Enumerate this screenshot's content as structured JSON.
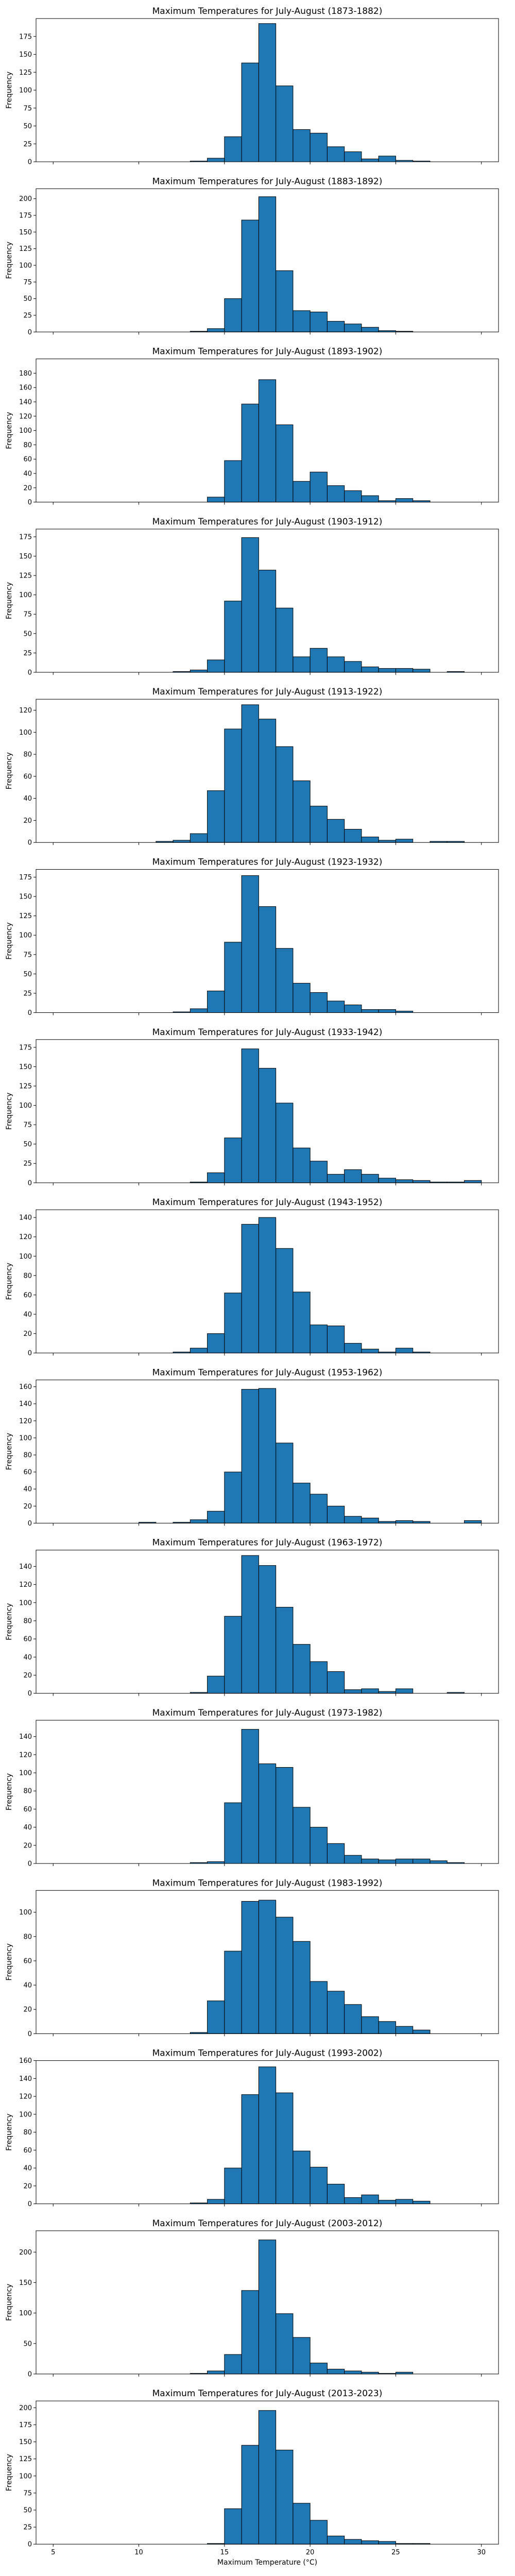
{
  "chart_data": {
    "type": "bar",
    "xlabel": "Maximum Temperature (°C)",
    "ylabel": "Frequency",
    "xlim": [
      4,
      31
    ],
    "x_ticks": [
      5,
      10,
      15,
      20,
      25,
      30
    ],
    "bin_width": 1,
    "bar_color": "#1f77b4",
    "edge_color": "#000000",
    "grid": false,
    "panels": [
      {
        "title": "Maximum Temperatures for July-August (1873-1882)",
        "ylim": [
          0,
          200
        ],
        "y_ticks": [
          0,
          25,
          50,
          75,
          100,
          125,
          150,
          175
        ],
        "bin_starts": [
          13,
          14,
          15,
          16,
          17,
          18,
          19,
          20,
          21,
          22,
          23,
          24,
          25,
          26
        ],
        "values": [
          1,
          5,
          35,
          138,
          193,
          106,
          45,
          40,
          21,
          14,
          4,
          8,
          2,
          1
        ]
      },
      {
        "title": "Maximum Temperatures for July-August (1883-1892)",
        "ylim": [
          0,
          215
        ],
        "y_ticks": [
          0,
          25,
          50,
          75,
          100,
          125,
          150,
          175,
          200
        ],
        "bin_starts": [
          13,
          14,
          15,
          16,
          17,
          18,
          19,
          20,
          21,
          22,
          23,
          24,
          25
        ],
        "values": [
          1,
          5,
          50,
          168,
          203,
          92,
          32,
          30,
          16,
          12,
          7,
          2,
          1
        ]
      },
      {
        "title": "Maximum Temperatures for July-August (1893-1902)",
        "ylim": [
          0,
          200
        ],
        "y_ticks": [
          0,
          20,
          40,
          60,
          80,
          100,
          120,
          140,
          160,
          180
        ],
        "bin_starts": [
          14,
          15,
          16,
          17,
          18,
          19,
          20,
          21,
          22,
          23,
          24,
          25,
          26
        ],
        "values": [
          7,
          58,
          137,
          171,
          108,
          29,
          42,
          23,
          16,
          9,
          2,
          5,
          2
        ]
      },
      {
        "title": "Maximum Temperatures for July-August (1903-1912)",
        "ylim": [
          0,
          185
        ],
        "y_ticks": [
          0,
          25,
          50,
          75,
          100,
          125,
          150,
          175
        ],
        "bin_starts": [
          12,
          13,
          14,
          15,
          16,
          17,
          18,
          19,
          20,
          21,
          22,
          23,
          24,
          25,
          26,
          27,
          28
        ],
        "values": [
          1,
          3,
          16,
          92,
          174,
          132,
          83,
          20,
          31,
          20,
          14,
          7,
          5,
          5,
          4,
          0,
          1
        ]
      },
      {
        "title": "Maximum Temperatures for July-August (1913-1922)",
        "ylim": [
          0,
          130
        ],
        "y_ticks": [
          0,
          20,
          40,
          60,
          80,
          100,
          120
        ],
        "bin_starts": [
          11,
          12,
          13,
          14,
          15,
          16,
          17,
          18,
          19,
          20,
          21,
          22,
          23,
          24,
          25,
          26,
          27,
          28
        ],
        "values": [
          1,
          2,
          8,
          47,
          103,
          125,
          112,
          87,
          56,
          33,
          21,
          12,
          5,
          2,
          3,
          0,
          1,
          1
        ]
      },
      {
        "title": "Maximum Temperatures for July-August (1923-1932)",
        "ylim": [
          0,
          185
        ],
        "y_ticks": [
          0,
          25,
          50,
          75,
          100,
          125,
          150,
          175
        ],
        "bin_starts": [
          12,
          13,
          14,
          15,
          16,
          17,
          18,
          19,
          20,
          21,
          22,
          23,
          24,
          25
        ],
        "values": [
          1,
          5,
          28,
          91,
          177,
          137,
          83,
          38,
          26,
          15,
          10,
          4,
          4,
          2
        ]
      },
      {
        "title": "Maximum Temperatures for July-August (1933-1942)",
        "ylim": [
          0,
          185
        ],
        "y_ticks": [
          0,
          25,
          50,
          75,
          100,
          125,
          150,
          175
        ],
        "bin_starts": [
          13,
          14,
          15,
          16,
          17,
          18,
          19,
          20,
          21,
          22,
          23,
          24,
          25,
          26,
          27,
          28,
          29
        ],
        "values": [
          1,
          13,
          58,
          173,
          148,
          103,
          45,
          28,
          11,
          17,
          11,
          6,
          4,
          3,
          1,
          1,
          3
        ]
      },
      {
        "title": "Maximum Temperatures for July-August (1943-1952)",
        "ylim": [
          0,
          148
        ],
        "y_ticks": [
          0,
          20,
          40,
          60,
          80,
          100,
          120,
          140
        ],
        "bin_starts": [
          12,
          13,
          14,
          15,
          16,
          17,
          18,
          19,
          20,
          21,
          22,
          23,
          24,
          25,
          26
        ],
        "values": [
          1,
          5,
          20,
          62,
          133,
          140,
          108,
          63,
          29,
          28,
          10,
          4,
          1,
          5,
          1
        ]
      },
      {
        "title": "Maximum Temperatures for July-August (1953-1962)",
        "ylim": [
          0,
          168
        ],
        "y_ticks": [
          0,
          20,
          40,
          60,
          80,
          100,
          120,
          140,
          160
        ],
        "bin_starts": [
          10,
          11,
          12,
          13,
          14,
          15,
          16,
          17,
          18,
          19,
          20,
          21,
          22,
          23,
          24,
          25,
          26,
          27,
          28,
          29
        ],
        "values": [
          1,
          0,
          1,
          4,
          14,
          60,
          157,
          158,
          94,
          47,
          34,
          20,
          8,
          6,
          2,
          3,
          2,
          0,
          0,
          3
        ]
      },
      {
        "title": "Maximum Temperatures for July-August (1963-1972)",
        "ylim": [
          0,
          158
        ],
        "y_ticks": [
          0,
          20,
          40,
          60,
          80,
          100,
          120,
          140
        ],
        "bin_starts": [
          13,
          14,
          15,
          16,
          17,
          18,
          19,
          20,
          21,
          22,
          23,
          24,
          25,
          26,
          27,
          28
        ],
        "values": [
          1,
          19,
          85,
          152,
          141,
          95,
          54,
          35,
          24,
          4,
          5,
          2,
          5,
          0,
          0,
          1
        ]
      },
      {
        "title": "Maximum Temperatures for July-August (1973-1982)",
        "ylim": [
          0,
          158
        ],
        "y_ticks": [
          0,
          20,
          40,
          60,
          80,
          100,
          120,
          140
        ],
        "bin_starts": [
          13,
          14,
          15,
          16,
          17,
          18,
          19,
          20,
          21,
          22,
          23,
          24,
          25,
          26,
          27,
          28
        ],
        "values": [
          1,
          2,
          67,
          148,
          110,
          106,
          62,
          40,
          22,
          9,
          5,
          4,
          5,
          5,
          3,
          1
        ]
      },
      {
        "title": "Maximum Temperatures for July-August (1983-1992)",
        "ylim": [
          0,
          118
        ],
        "y_ticks": [
          0,
          20,
          40,
          60,
          80,
          100
        ],
        "bin_starts": [
          13,
          14,
          15,
          16,
          17,
          18,
          19,
          20,
          21,
          22,
          23,
          24,
          25,
          26
        ],
        "values": [
          1,
          27,
          68,
          109,
          110,
          96,
          76,
          43,
          35,
          24,
          14,
          10,
          6,
          3
        ]
      },
      {
        "title": "Maximum Temperatures for July-August (1993-2002)",
        "ylim": [
          0,
          160
        ],
        "y_ticks": [
          0,
          20,
          40,
          60,
          80,
          100,
          120,
          140,
          160
        ],
        "bin_starts": [
          13,
          14,
          15,
          16,
          17,
          18,
          19,
          20,
          21,
          22,
          23,
          24,
          25,
          26
        ],
        "values": [
          1,
          5,
          40,
          122,
          153,
          124,
          59,
          41,
          22,
          7,
          10,
          4,
          5,
          3
        ]
      },
      {
        "title": "Maximum Temperatures for July-August (2003-2012)",
        "ylim": [
          0,
          235
        ],
        "y_ticks": [
          0,
          50,
          100,
          150,
          200
        ],
        "bin_starts": [
          13,
          14,
          15,
          16,
          17,
          18,
          19,
          20,
          21,
          22,
          23,
          24,
          25
        ],
        "values": [
          1,
          5,
          32,
          137,
          220,
          99,
          60,
          18,
          8,
          5,
          3,
          1,
          3
        ]
      },
      {
        "title": "Maximum Temperatures for July-August (2013-2023)",
        "ylim": [
          0,
          210
        ],
        "y_ticks": [
          0,
          25,
          50,
          75,
          100,
          125,
          150,
          175,
          200
        ],
        "bin_starts": [
          14,
          15,
          16,
          17,
          18,
          19,
          20,
          21,
          22,
          23,
          24,
          25,
          26
        ],
        "values": [
          1,
          52,
          145,
          196,
          138,
          60,
          35,
          12,
          7,
          5,
          4,
          1,
          1
        ]
      }
    ]
  }
}
